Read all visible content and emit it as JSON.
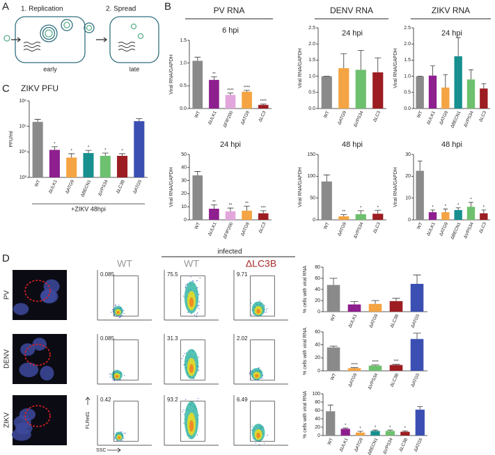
{
  "panel_labels": [
    "A",
    "B",
    "C",
    "D"
  ],
  "panel_a": {
    "steps": [
      "1. Replication",
      "2. Spread"
    ],
    "stages": [
      "early",
      "late"
    ]
  },
  "panel_b": {
    "headers": [
      "PV RNA",
      "DENV RNA",
      "ZIKV RNA"
    ]
  },
  "chart_data": [
    {
      "type": "bar",
      "title": "6 hpi",
      "ylabel": "Viral RNA/GAPDH",
      "categories": [
        "WT",
        "ΔULK1",
        "ΔFIP200",
        "ΔATG9",
        "ΔLC3"
      ],
      "values": [
        1.05,
        0.63,
        0.3,
        0.37,
        0.08
      ],
      "errors": [
        0.08,
        0.07,
        0.04,
        0.03,
        0.02
      ],
      "colors": [
        "#8a8a8a",
        "#8e1f8e",
        "#e2a6dc",
        "#f4a442",
        "#9c1d22"
      ],
      "annotations": [
        null,
        "**",
        "****",
        "****",
        "****"
      ],
      "ylim": [
        0,
        1.5
      ],
      "yticks": [
        {
          "value": 0,
          "label": "0.0"
        },
        0.5,
        {
          "value": 1,
          "label": "1.0"
        },
        1.5
      ]
    },
    {
      "type": "bar",
      "title": "24 hpi",
      "ylabel": "Viral RNA/GAPDH",
      "categories": [
        "WT",
        "ΔATG9",
        "ΔVPS34",
        "ΔLC3"
      ],
      "values": [
        1.0,
        1.25,
        1.2,
        1.12
      ],
      "errors": [
        0,
        0.45,
        0.6,
        0.45
      ],
      "colors": [
        "#8a8a8a",
        "#f4a442",
        "#6dc06d",
        "#9c1d22"
      ],
      "annotations": [
        null,
        null,
        null,
        null
      ],
      "ylim": [
        0,
        2.5
      ],
      "yticks": [
        {
          "value": 0,
          "label": "0.0"
        },
        0.5,
        {
          "value": 1,
          "label": "1.0"
        },
        1.5,
        {
          "value": 2,
          "label": "2.0"
        },
        2.5
      ]
    },
    {
      "type": "bar",
      "title": "24 hpi",
      "ylabel": "Viral RNA/GAPDH",
      "categories": [
        "WT",
        "ΔULK1",
        "ΔATG9",
        "ΔBECN1",
        "ΔVPS34",
        "ΔLC3"
      ],
      "values": [
        1.0,
        1.02,
        0.65,
        1.62,
        0.9,
        0.62
      ],
      "errors": [
        0,
        0.3,
        0.4,
        0.58,
        0.3,
        0.15
      ],
      "colors": [
        "#8a8a8a",
        "#8e1f8e",
        "#f4a442",
        "#17908f",
        "#6dc06d",
        "#9c1d22"
      ],
      "annotations": [
        null,
        null,
        null,
        null,
        null,
        null
      ],
      "ylim": [
        0,
        2.5
      ],
      "yticks": [
        {
          "value": 0,
          "label": "0.0"
        },
        0.5,
        {
          "value": 1,
          "label": "1.0"
        },
        1.5,
        {
          "value": 2,
          "label": "2.0"
        },
        2.5
      ]
    },
    {
      "type": "bar",
      "title": "24 hpi",
      "ylabel": "Viral RNA/GAPDH",
      "categories": [
        "WT",
        "ΔULK1",
        "ΔFIP200",
        "ΔATG9",
        "ΔLC3"
      ],
      "values": [
        34,
        8.5,
        6.5,
        7,
        5
      ],
      "errors": [
        3,
        3,
        2.5,
        3.5,
        2
      ],
      "colors": [
        "#8a8a8a",
        "#8e1f8e",
        "#e2a6dc",
        "#f4a442",
        "#9c1d22"
      ],
      "annotations": [
        null,
        "**",
        "**",
        "**",
        "***"
      ],
      "ylim": [
        0,
        50
      ],
      "yticks": [
        0,
        10,
        20,
        30,
        40,
        50
      ]
    },
    {
      "type": "bar",
      "title": "48 hpi",
      "ylabel": "Viral RNA/GAPDH",
      "categories": [
        "WT",
        "ΔATG9",
        "ΔVPS34",
        "ΔLC3"
      ],
      "values": [
        88,
        8,
        13,
        14
      ],
      "errors": [
        15,
        4,
        8,
        8
      ],
      "colors": [
        "#8a8a8a",
        "#f4a442",
        "#6dc06d",
        "#9c1d22"
      ],
      "annotations": [
        null,
        "**",
        "*",
        "*"
      ],
      "ylim": [
        0,
        150
      ],
      "yticks": [
        0,
        50,
        100,
        150
      ]
    },
    {
      "type": "bar",
      "title": "48 hpi",
      "ylabel": "Viral RNA/GAPDH",
      "categories": [
        "WT",
        "ΔULK1",
        "ΔATG9",
        "ΔBECN1",
        "ΔVPS34",
        "ΔLC3"
      ],
      "values": [
        22.5,
        3.5,
        3.5,
        4.5,
        6,
        3
      ],
      "errors": [
        4.5,
        1,
        1.5,
        1,
        2,
        1.5
      ],
      "colors": [
        "#8a8a8a",
        "#8e1f8e",
        "#f4a442",
        "#17908f",
        "#6dc06d",
        "#9c1d22"
      ],
      "annotations": [
        null,
        "*",
        "*",
        "*",
        "*",
        "*"
      ],
      "ylim": [
        0,
        30
      ],
      "yticks": [
        0,
        10,
        20,
        30
      ]
    },
    {
      "type": "bar",
      "title": "ZIKV PFU",
      "ylabel": "PFU/ml",
      "xlabel": "+ZIKV 48hpi",
      "log_scale": true,
      "categories": [
        "WT",
        "ΔULK1",
        "ΔATG9",
        "ΔBECN1",
        "ΔVPS34",
        "ΔLC3B",
        "ΔATG5"
      ],
      "values": [
        150000,
        12000,
        6000,
        9000,
        7000,
        7000,
        160000
      ],
      "errors": [
        40000,
        4000,
        2500,
        2500,
        2000,
        1500,
        40000
      ],
      "colors": [
        "#8a8a8a",
        "#8e1f8e",
        "#f4a442",
        "#17908f",
        "#6dc06d",
        "#9c1d22",
        "#3b4fb2"
      ],
      "annotations": [
        null,
        "*",
        "*",
        "*",
        "*",
        "*",
        null
      ],
      "ylim": [
        1000,
        1000000
      ],
      "yticks": [
        {
          "value": 1000,
          "label": "10³"
        },
        {
          "value": 10000,
          "label": "10⁴"
        },
        {
          "value": 100000,
          "label": "10⁵"
        },
        {
          "value": 1000000,
          "label": "10⁶"
        }
      ]
    },
    {
      "type": "bar",
      "ylabel": "% cells with viral RNA",
      "categories": [
        "WT",
        "ΔULK1",
        "ΔATG9",
        "ΔLC3B",
        "ΔATG5"
      ],
      "values": [
        48,
        13,
        14,
        19,
        50
      ],
      "errors": [
        12,
        5,
        6,
        5,
        16
      ],
      "colors": [
        "#8a8a8a",
        "#8e1f8e",
        "#f4a442",
        "#9c1d22",
        "#3b4fb2"
      ],
      "annotations": [
        null,
        null,
        null,
        null,
        null
      ],
      "ylim": [
        0,
        80
      ],
      "yticks": [
        0,
        20,
        40,
        60,
        80
      ]
    },
    {
      "type": "bar",
      "ylabel": "% cells with viral RNA",
      "categories": [
        "WT",
        "ΔATG9",
        "ΔVPS34",
        "ΔLC3B",
        "ΔATG5"
      ],
      "values": [
        36,
        4,
        8,
        9,
        49
      ],
      "errors": [
        2,
        1,
        1,
        1,
        9
      ],
      "colors": [
        "#8a8a8a",
        "#f4a442",
        "#6dc06d",
        "#9c1d22",
        "#3b4fb2"
      ],
      "annotations": [
        null,
        "****",
        "****",
        "***",
        null
      ],
      "ylim": [
        0,
        60
      ],
      "yticks": [
        0,
        20,
        40,
        60
      ]
    },
    {
      "type": "bar",
      "ylabel": "% cells with viral RNA",
      "categories": [
        "WT",
        "ΔULK1",
        "ΔATG9",
        "ΔBECN1",
        "ΔVPS34",
        "ΔLC3B",
        "ΔATG5"
      ],
      "values": [
        58,
        16,
        7,
        11,
        11,
        9,
        62
      ],
      "errors": [
        15,
        2,
        3,
        2,
        2,
        2,
        7
      ],
      "colors": [
        "#8a8a8a",
        "#8e1f8e",
        "#f4a442",
        "#17908f",
        "#6dc06d",
        "#9c1d22",
        "#3b4fb2"
      ],
      "annotations": [
        null,
        "*",
        "*",
        "*",
        "*",
        "*",
        null
      ],
      "ylim": [
        0,
        100
      ],
      "yticks": [
        0,
        20,
        40,
        60,
        80,
        100
      ]
    }
  ],
  "panel_d": {
    "infected": "infected",
    "columns": [
      "WT",
      "WT",
      "ΔLC3B"
    ],
    "rows": [
      {
        "label": "PV",
        "gates": [
          0.085,
          75.5,
          9.71
        ]
      },
      {
        "label": "DENV",
        "gates": [
          0.085,
          31.3,
          2.02
        ]
      },
      {
        "label": "ZIKV",
        "gates": [
          0.42,
          93.2,
          6.49
        ]
      }
    ],
    "y_axis": "FLRed1",
    "x_axis": "SSC"
  }
}
